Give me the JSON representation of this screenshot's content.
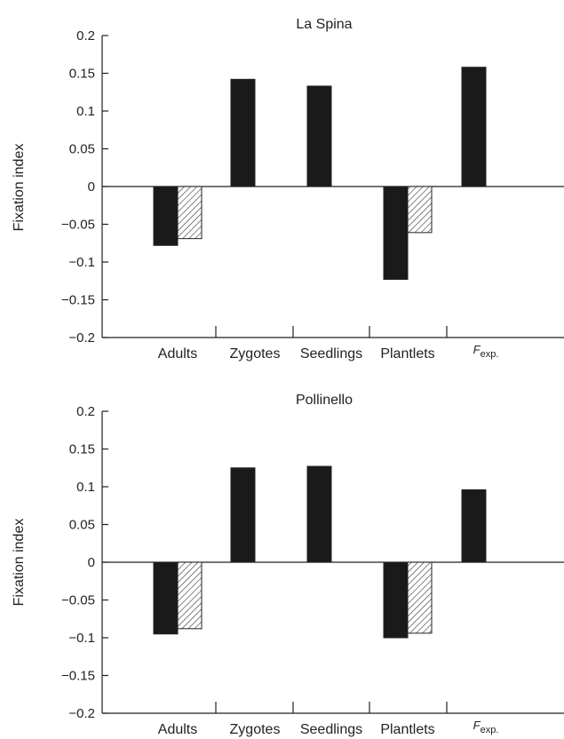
{
  "chart_data": [
    {
      "type": "bar",
      "title": "La Spina",
      "ylabel": "Fixation index",
      "xlabel": "",
      "ylim": [
        -0.2,
        0.2
      ],
      "yticks": [
        0.2,
        0.15,
        0.1,
        0.05,
        0,
        -0.05,
        -0.1,
        -0.15,
        -0.2
      ],
      "ytick_labels": [
        "0.2",
        "0.15",
        "0.1",
        "0.05",
        "0",
        "−0.05",
        "−0.1",
        "−0.15",
        "−0.2"
      ],
      "categories": [
        "Adults",
        "Zygotes",
        "Seedlings",
        "Plantlets",
        "F"
      ],
      "category_subscript": [
        "",
        "",
        "",
        "",
        "exp."
      ],
      "grid": false,
      "series": [
        {
          "color": "#1a1a1a",
          "pattern": "solid",
          "values": [
            -0.078,
            0.142,
            0.133,
            -0.123,
            0.158
          ]
        },
        {
          "color": "#ffffff",
          "pattern": "hatched",
          "values": [
            -0.069,
            null,
            null,
            -0.061,
            null
          ]
        }
      ]
    },
    {
      "type": "bar",
      "title": "Pollinello",
      "ylabel": "Fixation index",
      "xlabel": "",
      "ylim": [
        -0.2,
        0.2
      ],
      "yticks": [
        0.2,
        0.15,
        0.1,
        0.05,
        0,
        -0.05,
        -0.1,
        -0.15,
        -0.2
      ],
      "ytick_labels": [
        "0.2",
        "0.15",
        "0.1",
        "0.05",
        "0",
        "−0.05",
        "−0.1",
        "−0.15",
        "−0.2"
      ],
      "categories": [
        "Adults",
        "Zygotes",
        "Seedlings",
        "Plantlets",
        "F"
      ],
      "category_subscript": [
        "",
        "",
        "",
        "",
        "exp."
      ],
      "grid": false,
      "series": [
        {
          "color": "#1a1a1a",
          "pattern": "solid",
          "values": [
            -0.095,
            0.125,
            0.127,
            -0.1,
            0.096
          ]
        },
        {
          "color": "#ffffff",
          "pattern": "hatched",
          "values": [
            -0.088,
            null,
            null,
            -0.094,
            null
          ]
        }
      ]
    }
  ]
}
